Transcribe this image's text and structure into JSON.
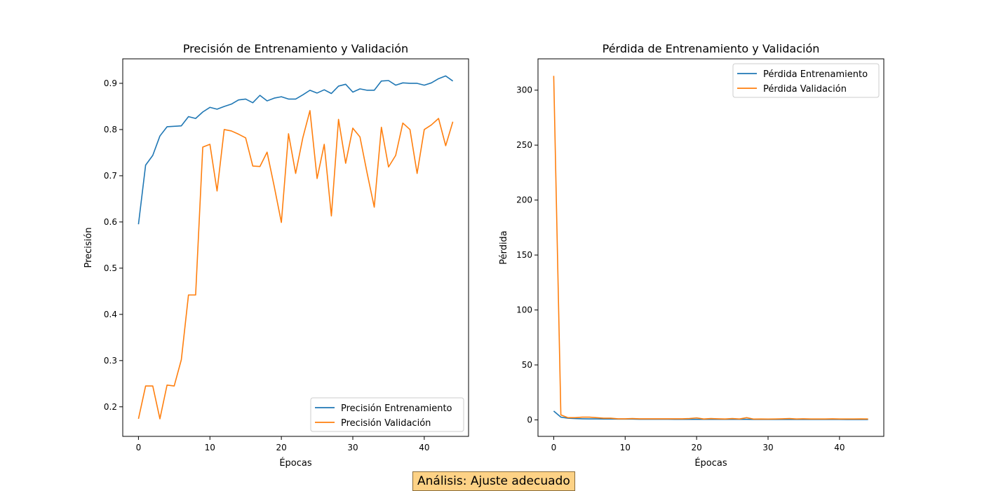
{
  "colors": {
    "train": "#1f77b4",
    "validation": "#ff7f0e"
  },
  "analysis": {
    "text": "Análisis: Ajuste adecuado"
  },
  "chart_data": [
    {
      "type": "line",
      "title": "Precisión de Entrenamiento y Validación",
      "xlabel": "Épocas",
      "ylabel": "Precisión",
      "xlim": [
        -2.2,
        46.2
      ],
      "ylim": [
        0.136,
        0.953
      ],
      "xticks": [
        0,
        10,
        20,
        30,
        40
      ],
      "yticks": [
        0.2,
        0.3,
        0.4,
        0.5,
        0.6,
        0.7,
        0.8,
        0.9
      ],
      "ytick_labels": [
        "0.2",
        "0.3",
        "0.4",
        "0.5",
        "0.6",
        "0.7",
        "0.8",
        "0.9"
      ],
      "legend_position": "lower-right",
      "grid": false,
      "x": [
        0,
        1,
        2,
        3,
        4,
        5,
        6,
        7,
        8,
        9,
        10,
        11,
        12,
        13,
        14,
        15,
        16,
        17,
        18,
        19,
        20,
        21,
        22,
        23,
        24,
        25,
        26,
        27,
        28,
        29,
        30,
        31,
        32,
        33,
        34,
        35,
        36,
        37,
        38,
        39,
        40,
        41,
        42,
        43,
        44
      ],
      "series": [
        {
          "name": "Precisión Entrenamiento",
          "color_key": "train",
          "values": [
            0.595,
            0.723,
            0.744,
            0.786,
            0.806,
            0.807,
            0.808,
            0.828,
            0.824,
            0.838,
            0.848,
            0.844,
            0.85,
            0.855,
            0.864,
            0.866,
            0.858,
            0.874,
            0.862,
            0.868,
            0.871,
            0.866,
            0.866,
            0.875,
            0.885,
            0.879,
            0.886,
            0.878,
            0.894,
            0.898,
            0.881,
            0.888,
            0.885,
            0.885,
            0.905,
            0.906,
            0.896,
            0.901,
            0.9,
            0.9,
            0.896,
            0.901,
            0.91,
            0.916,
            0.905
          ]
        },
        {
          "name": "Precisión Validación",
          "color_key": "validation",
          "values": [
            0.174,
            0.245,
            0.245,
            0.174,
            0.247,
            0.245,
            0.302,
            0.442,
            0.442,
            0.762,
            0.768,
            0.667,
            0.8,
            0.797,
            0.79,
            0.782,
            0.721,
            0.72,
            0.751,
            0.677,
            0.599,
            0.791,
            0.705,
            0.782,
            0.841,
            0.694,
            0.768,
            0.613,
            0.822,
            0.727,
            0.803,
            0.784,
            0.706,
            0.632,
            0.805,
            0.719,
            0.744,
            0.814,
            0.8,
            0.705,
            0.8,
            0.81,
            0.824,
            0.765,
            0.817
          ]
        }
      ]
    },
    {
      "type": "line",
      "title": "Pérdida de Entrenamiento y Validación",
      "xlabel": "Épocas",
      "ylabel": "Pérdida",
      "xlim": [
        -2.2,
        46.2
      ],
      "ylim": [
        -15.0,
        328.5
      ],
      "xticks": [
        0,
        10,
        20,
        30,
        40
      ],
      "yticks": [
        0,
        50,
        100,
        150,
        200,
        250,
        300
      ],
      "ytick_labels": [
        "0",
        "50",
        "100",
        "150",
        "200",
        "250",
        "300"
      ],
      "legend_position": "upper-right",
      "grid": false,
      "x": [
        0,
        1,
        2,
        3,
        4,
        5,
        6,
        7,
        8,
        9,
        10,
        11,
        12,
        13,
        14,
        15,
        16,
        17,
        18,
        19,
        20,
        21,
        22,
        23,
        24,
        25,
        26,
        27,
        28,
        29,
        30,
        31,
        32,
        33,
        34,
        35,
        36,
        37,
        38,
        39,
        40,
        41,
        42,
        43,
        44
      ],
      "series": [
        {
          "name": "Pérdida Entrenamiento",
          "color_key": "train",
          "values": [
            8.0,
            2.5,
            1.5,
            1.2,
            1.0,
            0.9,
            0.9,
            0.8,
            0.8,
            0.7,
            0.7,
            0.7,
            0.6,
            0.6,
            0.6,
            0.6,
            0.6,
            0.5,
            0.5,
            0.5,
            0.5,
            0.5,
            0.5,
            0.5,
            0.5,
            0.5,
            0.5,
            0.5,
            0.4,
            0.4,
            0.4,
            0.4,
            0.4,
            0.4,
            0.4,
            0.4,
            0.4,
            0.4,
            0.4,
            0.4,
            0.4,
            0.3,
            0.3,
            0.3,
            0.3
          ]
        },
        {
          "name": "Pérdida Validación",
          "color_key": "validation",
          "values": [
            313.0,
            4.5,
            2.0,
            2.0,
            2.5,
            2.5,
            2.0,
            1.5,
            1.5,
            1.0,
            1.0,
            1.2,
            1.0,
            1.0,
            1.0,
            1.0,
            1.0,
            1.0,
            1.0,
            1.2,
            1.8,
            0.8,
            1.2,
            1.0,
            0.8,
            1.2,
            0.8,
            2.0,
            0.7,
            0.8,
            0.7,
            0.8,
            1.0,
            1.2,
            0.8,
            1.0,
            0.8,
            0.8,
            0.8,
            1.0,
            0.8,
            0.8,
            0.8,
            0.9,
            0.8
          ]
        }
      ]
    }
  ]
}
